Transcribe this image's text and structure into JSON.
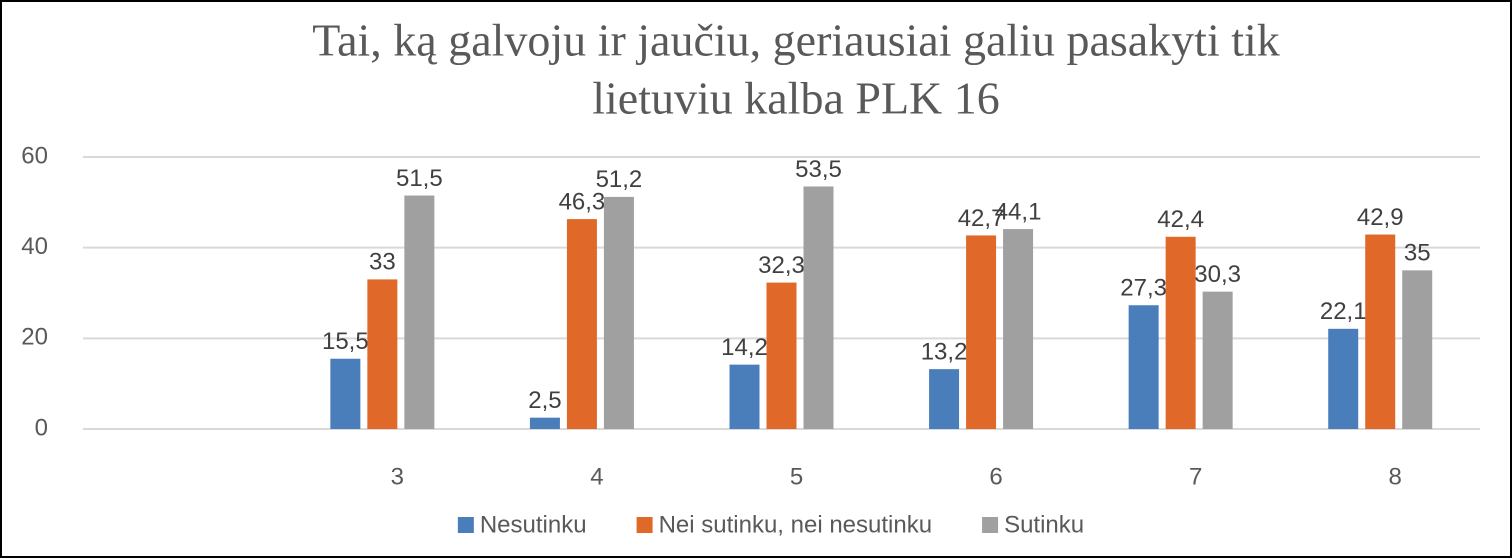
{
  "chart_data": {
    "type": "bar",
    "title": [
      "Tai, ką galvoju ir jaučiu, geriausiai galiu pasakyti tik",
      "lietuviu kalba PLK 16"
    ],
    "categories": [
      null,
      "3",
      "4",
      "5",
      "6",
      "7",
      "8"
    ],
    "series": [
      {
        "name": "Nesutinku",
        "color": "#4a7ebb",
        "values": [
          null,
          15.5,
          2.5,
          14.2,
          13.2,
          27.3,
          22.1
        ],
        "value_labels": [
          null,
          "15,5",
          "2,5",
          "14,2",
          "13,2",
          "27,3",
          "22,1"
        ]
      },
      {
        "name": "Nei sutinku, nei nesutinku",
        "color": "#e0692a",
        "values": [
          null,
          33,
          46.3,
          32.3,
          42.7,
          42.4,
          42.9
        ],
        "value_labels": [
          null,
          "33",
          "46,3",
          "32,3",
          "42,7",
          "42,4",
          "42,9"
        ]
      },
      {
        "name": "Sutinku",
        "color": "#a0a0a0",
        "values": [
          null,
          51.5,
          51.2,
          53.5,
          44.1,
          30.3,
          35
        ],
        "value_labels": [
          null,
          "51,5",
          "51,2",
          "53,5",
          "44,1",
          "30,3",
          "35"
        ]
      }
    ],
    "ylim": [
      0,
      60
    ],
    "yticks": [
      0,
      20,
      40,
      60
    ],
    "grid": true,
    "legend": "bottom"
  }
}
